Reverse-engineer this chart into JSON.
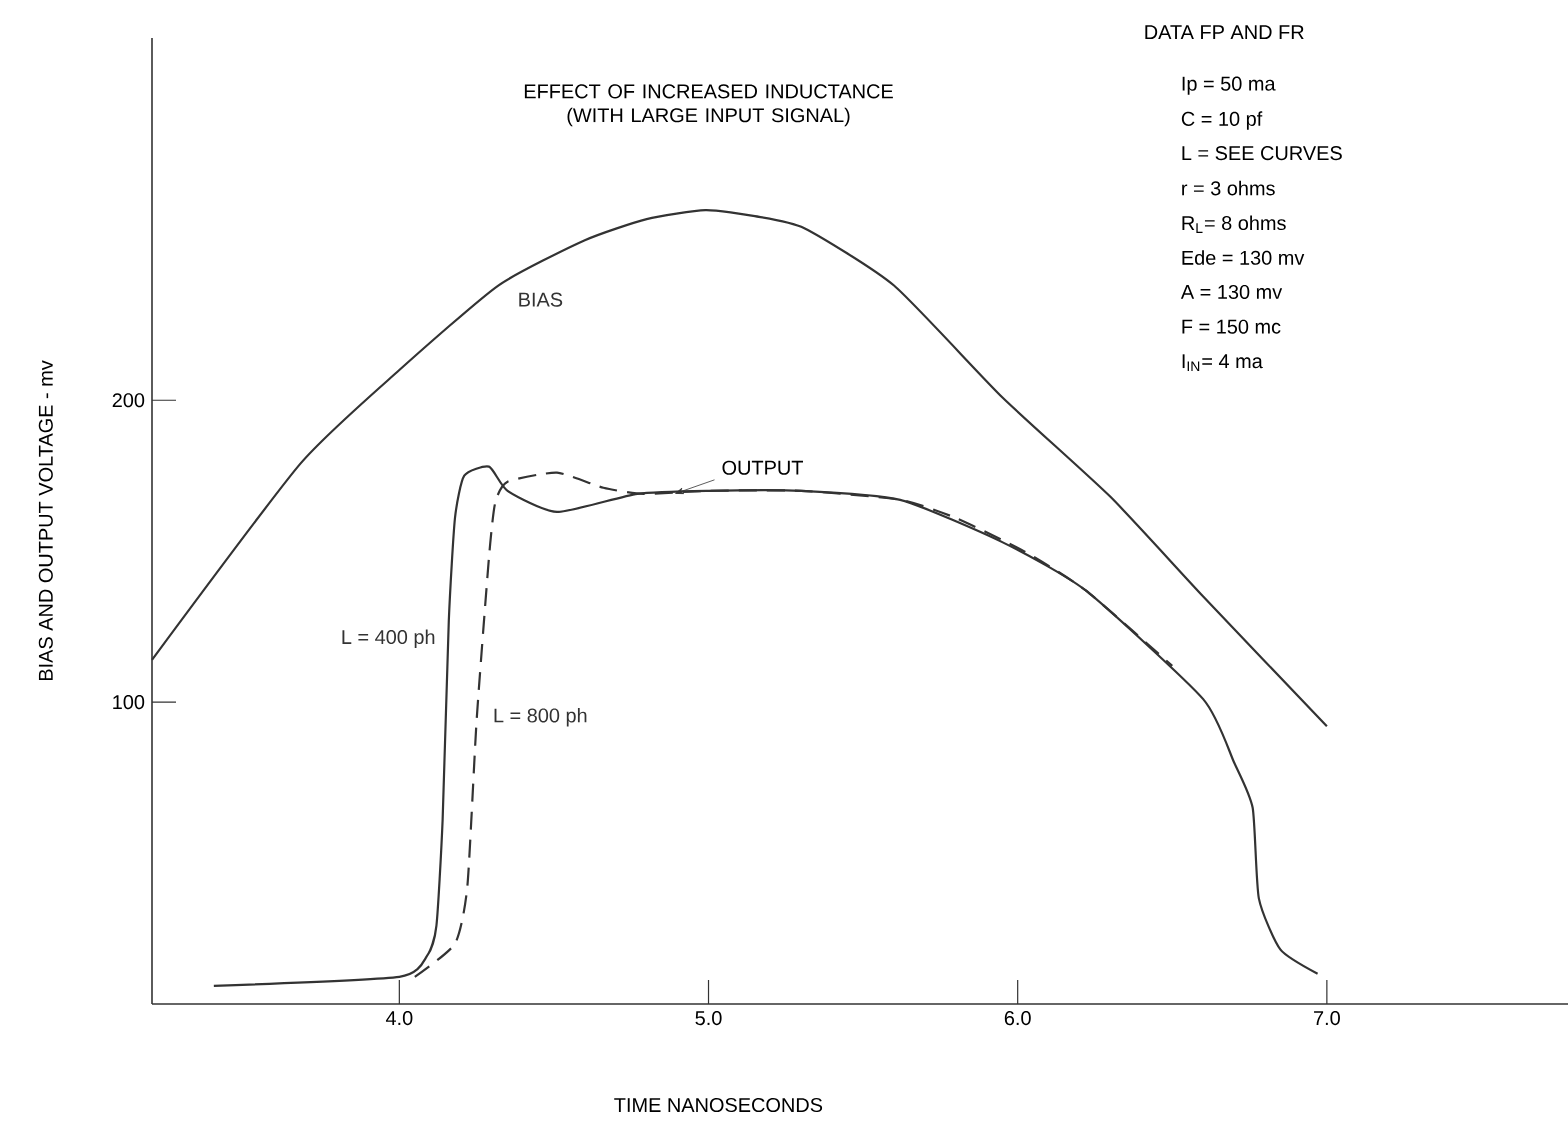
{
  "chart_data": {
    "type": "line",
    "title": "EFFECT OF INCREASED INDUCTANCE (WITH LARGE INPUT SIGNAL)",
    "xlabel": "TIME NANOSECONDS",
    "ylabel": "BIAS AND OUTPUT VOLTAGE - mv",
    "xlim": [
      3.2,
      7.78
    ],
    "ylim": [
      0,
      320
    ],
    "xticks": [
      {
        "value": 4,
        "label": "4.0"
      },
      {
        "value": 5,
        "label": "5.0"
      },
      {
        "value": 6,
        "label": "6.0"
      },
      {
        "value": 7,
        "label": "7.0"
      }
    ],
    "yticks": [
      100,
      200
    ],
    "grid": false,
    "marker": "none",
    "series": [
      {
        "name": "BIAS",
        "color": "#333333",
        "line_style": "solid",
        "x": [
          3.2,
          3.68,
          4.0,
          4.32,
          4.6,
          4.8,
          4.99,
          5.15,
          5.31,
          5.6,
          5.95,
          6.3,
          6.6,
          7.0
        ],
        "values": [
          114,
          179,
          210,
          238,
          253,
          260,
          263,
          261,
          257,
          238,
          201,
          168,
          135,
          92
        ]
      },
      {
        "name": "L = 400 ph",
        "color": "#333333",
        "line_style": "solid",
        "x": [
          3.4,
          4.0,
          4.09,
          4.12,
          4.14,
          4.16,
          4.18,
          4.21,
          4.29,
          4.35,
          4.51,
          4.77,
          5.0,
          5.3,
          5.62,
          5.95,
          6.22,
          6.6,
          6.7,
          6.76,
          6.78,
          6.85,
          6.97
        ],
        "values": [
          6,
          9,
          16,
          26,
          61,
          127,
          161,
          175,
          178,
          170,
          163,
          169,
          170,
          170,
          167,
          153,
          137,
          101,
          80,
          65,
          35,
          18,
          10
        ]
      },
      {
        "name": "L = 800 ph",
        "color": "#333333",
        "line_style": "dashed",
        "x": [
          4.05,
          4.18,
          4.22,
          4.25,
          4.29,
          4.31,
          4.35,
          4.51,
          4.66,
          4.79,
          5.0,
          5.3,
          5.62,
          5.8,
          6.02,
          6.22,
          6.5
        ],
        "values": [
          9,
          20,
          39,
          94,
          148,
          166,
          173,
          176,
          171,
          169,
          170,
          170,
          167,
          161,
          150,
          137,
          112
        ]
      }
    ],
    "annotations": [
      {
        "text": "OUTPUT",
        "x": 4.89,
        "y": 169
      },
      "DATA FP AND FR",
      "Ip = 50 ma",
      "C = 10 pf",
      "L = SEE CURVES",
      "r = 3 ohms",
      "R$_{L}$= 8 ohms",
      "Ede = 130 mv",
      "A = 130 mv",
      "F = 150 mc",
      "I$_{IN}$= 4 ma"
    ]
  }
}
